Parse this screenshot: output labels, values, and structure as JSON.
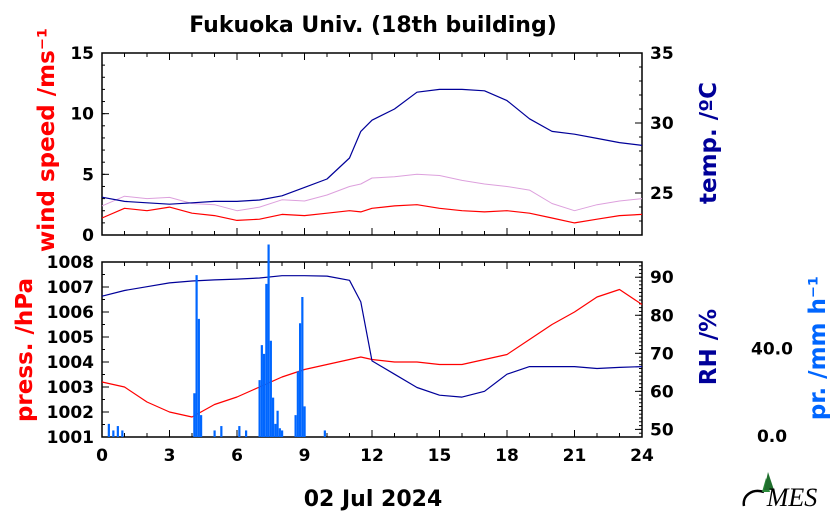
{
  "chart_data": [
    {
      "type": "line",
      "title": "Fukuoka Univ. (18th building)",
      "xlabel": "",
      "x": [
        0,
        1,
        2,
        3,
        4,
        5,
        6,
        7,
        8,
        9,
        10,
        11,
        11.5,
        12,
        13,
        14,
        15,
        16,
        17,
        18,
        19,
        20,
        21,
        22,
        23,
        24
      ],
      "x_ticks": [
        "0",
        "3",
        "6",
        "9",
        "12",
        "15",
        "18",
        "21",
        "24"
      ],
      "xlim": [
        0,
        24
      ],
      "left_axis": {
        "ylabel": "wind speed /ms⁻¹",
        "ylim": [
          0,
          15
        ],
        "ticks": [
          "0",
          "5",
          "10",
          "15"
        ],
        "color": "#ff0000"
      },
      "right_axis": {
        "ylabel": "temp. /ºC",
        "ylim": [
          22,
          35
        ],
        "ticks": [
          "25",
          "30",
          "35"
        ],
        "color": "#000099"
      },
      "series": [
        {
          "axis": "left",
          "color": "#ff0000",
          "values": [
            1.4,
            2.2,
            2.0,
            2.3,
            1.8,
            1.6,
            1.2,
            1.3,
            1.7,
            1.6,
            1.8,
            2.0,
            1.9,
            2.2,
            2.4,
            2.5,
            2.2,
            2.0,
            1.9,
            2.0,
            1.8,
            1.4,
            1.0,
            1.3,
            1.6,
            1.7
          ]
        },
        {
          "axis": "left",
          "color": "#dda0dd",
          "values": [
            2.4,
            3.2,
            3.0,
            3.1,
            2.6,
            2.5,
            2.0,
            2.3,
            2.9,
            2.8,
            3.3,
            4.0,
            4.2,
            4.7,
            4.8,
            5.0,
            4.9,
            4.5,
            4.2,
            4.0,
            3.7,
            2.6,
            2.0,
            2.5,
            2.8,
            3.0
          ]
        },
        {
          "axis": "right",
          "color": "#000099",
          "values": [
            24.7,
            24.4,
            24.3,
            24.2,
            24.3,
            24.4,
            24.4,
            24.5,
            24.8,
            25.4,
            26.0,
            27.5,
            29.4,
            30.2,
            31.0,
            32.2,
            32.4,
            32.4,
            32.3,
            31.6,
            30.3,
            29.4,
            29.2,
            28.9,
            28.6,
            28.4
          ]
        }
      ]
    },
    {
      "type": "line",
      "xlabel": "02 Jul 2024",
      "x": [
        0,
        1,
        2,
        3,
        4,
        5,
        6,
        7,
        8,
        9,
        10,
        11,
        11.5,
        12,
        13,
        14,
        15,
        16,
        17,
        18,
        19,
        20,
        21,
        22,
        23,
        24
      ],
      "x_ticks": [
        "0",
        "3",
        "6",
        "9",
        "12",
        "15",
        "18",
        "21",
        "24"
      ],
      "xlim": [
        0,
        24
      ],
      "left_axis": {
        "ylabel": "press. /hPa",
        "ylim": [
          1001,
          1008
        ],
        "ticks": [
          "1001",
          "1002",
          "1003",
          "1004",
          "1005",
          "1006",
          "1007",
          "1008"
        ],
        "color": "#ff0000"
      },
      "right_axis": {
        "ylabel": "RH /%",
        "ylim": [
          48,
          94
        ],
        "ticks": [
          "50",
          "60",
          "70",
          "80",
          "90"
        ],
        "color": "#000099"
      },
      "precip_axis": {
        "ylabel": "pr. /mm h⁻¹",
        "ticks": [
          "0.0",
          "40.0"
        ],
        "ylim": [
          0,
          80
        ],
        "color": "#0066ff"
      },
      "series": [
        {
          "axis": "left",
          "color": "#ff0000",
          "values": [
            1003.2,
            1003.0,
            1002.4,
            1002.0,
            1001.8,
            1002.3,
            1002.6,
            1003.0,
            1003.4,
            1003.7,
            1003.9,
            1004.1,
            1004.2,
            1004.1,
            1004.0,
            1004.0,
            1003.9,
            1003.9,
            1004.1,
            1004.3,
            1004.9,
            1005.5,
            1006.0,
            1006.6,
            1006.9,
            1006.3
          ]
        },
        {
          "axis": "right",
          "color": "#000099",
          "values": [
            85,
            86.5,
            87.5,
            88.5,
            89,
            89.3,
            89.5,
            89.8,
            90.4,
            90.4,
            90.3,
            89.2,
            83.5,
            68,
            64.5,
            61,
            59,
            58.5,
            60,
            64.5,
            66.5,
            66.5,
            66.5,
            66,
            66.3,
            66.5
          ]
        },
        {
          "axis": "precip",
          "color": "#0066ff",
          "type": "bar",
          "x": [
            0.3,
            0.5,
            0.7,
            0.9,
            4.1,
            4.2,
            4.3,
            4.4,
            5.0,
            5.3,
            6.1,
            6.4,
            7.0,
            7.1,
            7.2,
            7.3,
            7.4,
            7.5,
            7.6,
            7.7,
            7.8,
            7.9,
            8.0,
            8.6,
            8.7,
            8.8,
            8.9,
            9.0,
            9.9
          ],
          "values": [
            6,
            3,
            5,
            3,
            20,
            74,
            54,
            10,
            3,
            5,
            5,
            3,
            26,
            42,
            38,
            70,
            88,
            44,
            18,
            6,
            12,
            4,
            3,
            10,
            30,
            52,
            64,
            14,
            3
          ]
        }
      ]
    }
  ],
  "logo": {
    "text": "MES"
  }
}
